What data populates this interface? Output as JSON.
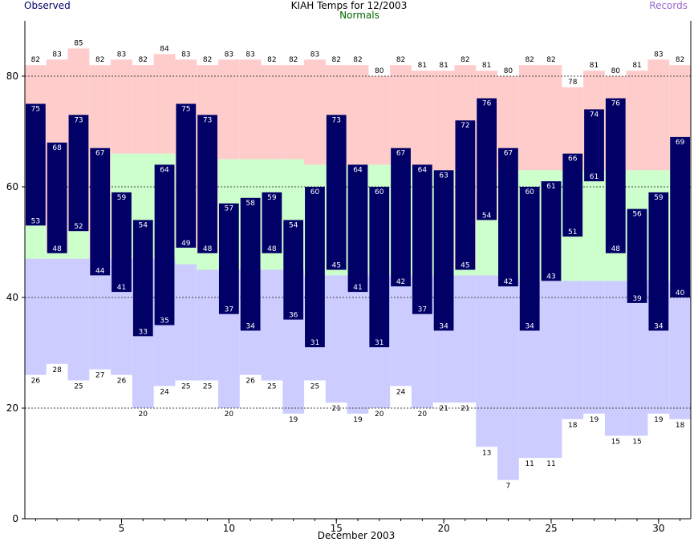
{
  "chart_data": {
    "type": "bar",
    "title": "KIAH Temps for 12/2003",
    "legend": {
      "observed": "Observed",
      "normals": "Normals",
      "records": "Records"
    },
    "xlabel": "December 2003",
    "x_ticks": [
      "5",
      "10",
      "15",
      "20",
      "25",
      "30"
    ],
    "y_ticks": [
      "0",
      "20",
      "40",
      "60",
      "80"
    ],
    "ylim": [
      0,
      90
    ],
    "xlim": [
      0.5,
      31.5
    ],
    "grid_y": [
      20,
      40,
      60,
      80
    ],
    "days": [
      1,
      2,
      3,
      4,
      5,
      6,
      7,
      8,
      9,
      10,
      11,
      12,
      13,
      14,
      15,
      16,
      17,
      18,
      19,
      20,
      21,
      22,
      23,
      24,
      25,
      26,
      27,
      28,
      29,
      30,
      31
    ],
    "observed_high": [
      75,
      68,
      73,
      67,
      59,
      54,
      64,
      75,
      73,
      57,
      58,
      59,
      54,
      60,
      73,
      64,
      60,
      67,
      64,
      63,
      72,
      76,
      67,
      60,
      61,
      66,
      74,
      76,
      56,
      59,
      69
    ],
    "observed_low": [
      53,
      48,
      52,
      44,
      41,
      33,
      35,
      49,
      48,
      37,
      34,
      48,
      36,
      31,
      45,
      41,
      31,
      42,
      37,
      34,
      45,
      54,
      42,
      34,
      43,
      51,
      61,
      48,
      39,
      34,
      40
    ],
    "normal_high": [
      53,
      48,
      52,
      44,
      66,
      66,
      66,
      49,
      48,
      65,
      65,
      65,
      65,
      64,
      64,
      64,
      64,
      64,
      63,
      63,
      45,
      54,
      63,
      63,
      63,
      63,
      63,
      63,
      63,
      63,
      63
    ],
    "normal_low": [
      47,
      47,
      47,
      47,
      47,
      47,
      47,
      46,
      45,
      45,
      45,
      45,
      45,
      44,
      44,
      44,
      44,
      44,
      44,
      44,
      44,
      44,
      44,
      43,
      43,
      43,
      43,
      43,
      43,
      43,
      43
    ],
    "record_high": [
      82,
      83,
      85,
      82,
      83,
      82,
      84,
      83,
      82,
      83,
      83,
      82,
      82,
      83,
      82,
      82,
      80,
      82,
      81,
      81,
      82,
      81,
      80,
      82,
      82,
      78,
      81,
      80,
      81,
      83,
      82
    ],
    "record_low": [
      26,
      28,
      25,
      27,
      26,
      20,
      24,
      25,
      25,
      20,
      26,
      25,
      19,
      25,
      21,
      19,
      20,
      24,
      20,
      21,
      21,
      13,
      7,
      11,
      11,
      18,
      19,
      15,
      15,
      19,
      18
    ],
    "colors": {
      "observed": "#000066",
      "normal": "#ccffcc",
      "record_high": "#ffcccc",
      "record_low": "#ccccff",
      "observed_text": "#000066",
      "normals_text": "#006600",
      "records_text": "#9966cc",
      "value_label": "#ffffff",
      "record_label": "#000000"
    }
  }
}
